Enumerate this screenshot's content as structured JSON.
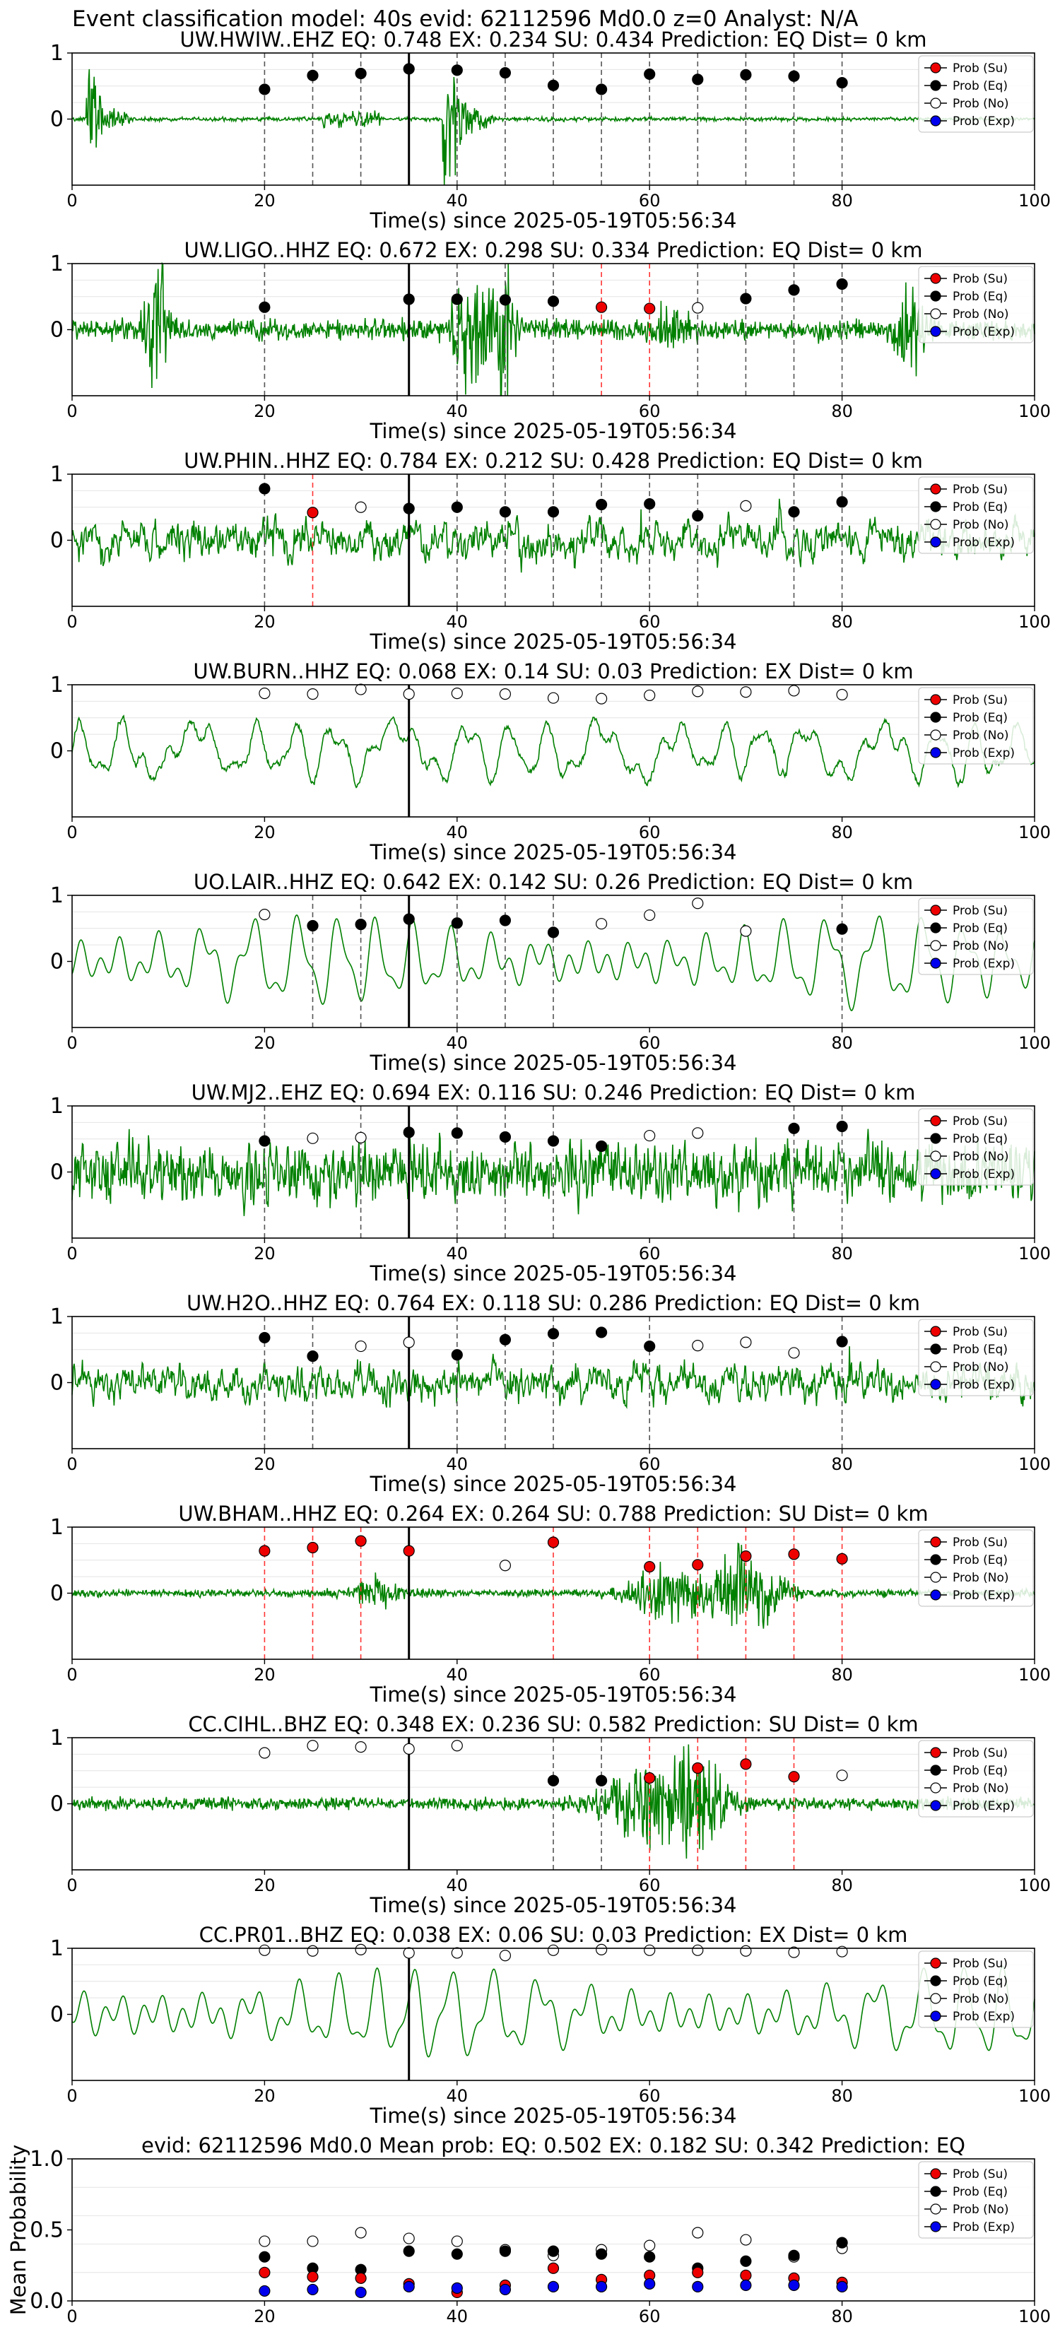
{
  "figure": {
    "suptitle": "Event classification model: 40s evid: 62112596 Md0.0 z=0 Analyst: N/A"
  },
  "legend_labels": [
    "Prob (Su)",
    "Prob (Eq)",
    "Prob (No)",
    "Prob (Exp)"
  ],
  "colors": {
    "su": "#ee0000",
    "eq": "#000000",
    "no": "#ffffff",
    "exp": "#0000ee",
    "waveform": "#008000",
    "pick_line": "#000000",
    "red_line": "#ff3333",
    "dash_line": "#555555"
  },
  "chart_data": [
    {
      "type": "line",
      "title": "UW.HWIW..EHZ   EQ: 0.748   EX: 0.234   SU: 0.434   Prediction: EQ    Dist= 0 km",
      "xlabel": "Time(s) since 2025-05-19T05:56:34",
      "xlim": [
        0,
        100
      ],
      "ylim": [
        -1,
        1
      ],
      "xticks": [
        "0",
        "20",
        "40",
        "60",
        "80",
        "100"
      ],
      "yticks": [
        "0",
        "1"
      ],
      "pick_time": 35,
      "waveform_style": "event",
      "windows": [
        20,
        25,
        30,
        35,
        40,
        45,
        50,
        55,
        60,
        65,
        70,
        75,
        80
      ],
      "points": [
        {
          "x": 20,
          "y": 0.45,
          "cls": "eq"
        },
        {
          "x": 25,
          "y": 0.66,
          "cls": "eq"
        },
        {
          "x": 30,
          "y": 0.69,
          "cls": "eq"
        },
        {
          "x": 35,
          "y": 0.76,
          "cls": "eq"
        },
        {
          "x": 40,
          "y": 0.74,
          "cls": "eq"
        },
        {
          "x": 45,
          "y": 0.7,
          "cls": "eq"
        },
        {
          "x": 50,
          "y": 0.51,
          "cls": "eq"
        },
        {
          "x": 55,
          "y": 0.45,
          "cls": "eq"
        },
        {
          "x": 60,
          "y": 0.68,
          "cls": "eq"
        },
        {
          "x": 65,
          "y": 0.6,
          "cls": "eq"
        },
        {
          "x": 70,
          "y": 0.67,
          "cls": "eq"
        },
        {
          "x": 75,
          "y": 0.65,
          "cls": "eq"
        },
        {
          "x": 80,
          "y": 0.55,
          "cls": "eq"
        }
      ]
    },
    {
      "type": "line",
      "title": "UW.LIGO..HHZ   EQ: 0.672  EX: 0.298   SU: 0.334   Prediction: EQ    Dist= 0 km",
      "xlabel": "Time(s) since 2025-05-19T05:56:34",
      "xlim": [
        0,
        100
      ],
      "ylim": [
        -1,
        1
      ],
      "xticks": [
        "0",
        "20",
        "40",
        "60",
        "80",
        "100"
      ],
      "yticks": [
        "0",
        "1"
      ],
      "pick_time": 35,
      "waveform_style": "bursty",
      "windows": [
        20,
        35,
        40,
        45,
        50,
        55,
        60,
        65,
        70,
        75,
        80
      ],
      "points": [
        {
          "x": 20,
          "y": 0.34,
          "cls": "eq"
        },
        {
          "x": 35,
          "y": 0.46,
          "cls": "eq"
        },
        {
          "x": 40,
          "y": 0.46,
          "cls": "eq"
        },
        {
          "x": 45,
          "y": 0.45,
          "cls": "eq"
        },
        {
          "x": 50,
          "y": 0.43,
          "cls": "eq"
        },
        {
          "x": 55,
          "y": 0.34,
          "cls": "su"
        },
        {
          "x": 60,
          "y": 0.32,
          "cls": "su"
        },
        {
          "x": 65,
          "y": 0.33,
          "cls": "no"
        },
        {
          "x": 70,
          "y": 0.47,
          "cls": "eq"
        },
        {
          "x": 75,
          "y": 0.6,
          "cls": "eq"
        },
        {
          "x": 80,
          "y": 0.69,
          "cls": "eq"
        }
      ]
    },
    {
      "type": "line",
      "title": "UW.PHIN..HHZ   EQ: 0.784  EX: 0.212   SU: 0.428   Prediction: EQ    Dist= 0 km",
      "xlabel": "Time(s) since 2025-05-19T05:56:34",
      "xlim": [
        0,
        100
      ],
      "ylim": [
        -1,
        1
      ],
      "xticks": [
        "0",
        "20",
        "40",
        "60",
        "80",
        "100"
      ],
      "yticks": [
        "0",
        "1"
      ],
      "pick_time": 35,
      "waveform_style": "noise",
      "windows": [
        20,
        25,
        35,
        40,
        45,
        50,
        55,
        60,
        65,
        75,
        80
      ],
      "points": [
        {
          "x": 20,
          "y": 0.78,
          "cls": "eq"
        },
        {
          "x": 25,
          "y": 0.42,
          "cls": "su"
        },
        {
          "x": 30,
          "y": 0.5,
          "cls": "no"
        },
        {
          "x": 35,
          "y": 0.48,
          "cls": "eq"
        },
        {
          "x": 40,
          "y": 0.5,
          "cls": "eq"
        },
        {
          "x": 45,
          "y": 0.43,
          "cls": "eq"
        },
        {
          "x": 50,
          "y": 0.43,
          "cls": "eq"
        },
        {
          "x": 55,
          "y": 0.54,
          "cls": "eq"
        },
        {
          "x": 60,
          "y": 0.55,
          "cls": "eq"
        },
        {
          "x": 65,
          "y": 0.37,
          "cls": "eq"
        },
        {
          "x": 70,
          "y": 0.52,
          "cls": "no"
        },
        {
          "x": 75,
          "y": 0.43,
          "cls": "eq"
        },
        {
          "x": 80,
          "y": 0.58,
          "cls": "eq"
        }
      ]
    },
    {
      "type": "line",
      "title": "UW.BURN..HHZ   EQ: 0.068   EX: 0.14   SU: 0.03   Prediction: EX    Dist= 0 km",
      "xlabel": "Time(s) since 2025-05-19T05:56:34",
      "xlim": [
        0,
        100
      ],
      "ylim": [
        -1,
        1
      ],
      "xticks": [
        "0",
        "20",
        "40",
        "60",
        "80",
        "100"
      ],
      "yticks": [
        "0",
        "1"
      ],
      "pick_time": 35,
      "waveform_style": "wavy",
      "windows": [],
      "points": [
        {
          "x": 20,
          "y": 0.87,
          "cls": "no"
        },
        {
          "x": 25,
          "y": 0.86,
          "cls": "no"
        },
        {
          "x": 30,
          "y": 0.93,
          "cls": "no"
        },
        {
          "x": 35,
          "y": 0.86,
          "cls": "no"
        },
        {
          "x": 40,
          "y": 0.87,
          "cls": "no"
        },
        {
          "x": 45,
          "y": 0.86,
          "cls": "no"
        },
        {
          "x": 50,
          "y": 0.8,
          "cls": "no"
        },
        {
          "x": 55,
          "y": 0.79,
          "cls": "no"
        },
        {
          "x": 60,
          "y": 0.84,
          "cls": "no"
        },
        {
          "x": 65,
          "y": 0.9,
          "cls": "no"
        },
        {
          "x": 70,
          "y": 0.89,
          "cls": "no"
        },
        {
          "x": 75,
          "y": 0.91,
          "cls": "no"
        },
        {
          "x": 80,
          "y": 0.85,
          "cls": "no"
        }
      ]
    },
    {
      "type": "line",
      "title": "UO.LAIR..HHZ   EQ: 0.642  EX: 0.142   SU: 0.26   Prediction: EQ    Dist= 0 km",
      "xlabel": "Time(s) since 2025-05-19T05:56:34",
      "xlim": [
        0,
        100
      ],
      "ylim": [
        -1,
        1
      ],
      "xticks": [
        "0",
        "20",
        "40",
        "60",
        "80",
        "100"
      ],
      "yticks": [
        "0",
        "1"
      ],
      "pick_time": 35,
      "waveform_style": "smooth",
      "windows": [
        25,
        30,
        35,
        40,
        45,
        50,
        80
      ],
      "points": [
        {
          "x": 20,
          "y": 0.71,
          "cls": "no"
        },
        {
          "x": 25,
          "y": 0.54,
          "cls": "eq"
        },
        {
          "x": 30,
          "y": 0.56,
          "cls": "eq"
        },
        {
          "x": 35,
          "y": 0.64,
          "cls": "eq"
        },
        {
          "x": 40,
          "y": 0.58,
          "cls": "eq"
        },
        {
          "x": 45,
          "y": 0.62,
          "cls": "eq"
        },
        {
          "x": 50,
          "y": 0.44,
          "cls": "eq"
        },
        {
          "x": 55,
          "y": 0.57,
          "cls": "no"
        },
        {
          "x": 60,
          "y": 0.7,
          "cls": "no"
        },
        {
          "x": 65,
          "y": 0.88,
          "cls": "no"
        },
        {
          "x": 70,
          "y": 0.46,
          "cls": "no"
        },
        {
          "x": 80,
          "y": 0.49,
          "cls": "eq"
        }
      ]
    },
    {
      "type": "line",
      "title": "UW.MJ2..EHZ   EQ: 0.694  EX: 0.116  SU: 0.246   Prediction: EQ    Dist= 0 km",
      "xlabel": "Time(s) since 2025-05-19T05:56:34",
      "xlim": [
        0,
        100
      ],
      "ylim": [
        -1,
        1
      ],
      "xticks": [
        "0",
        "20",
        "40",
        "60",
        "80",
        "100"
      ],
      "yticks": [
        "0",
        "1"
      ],
      "pick_time": 35,
      "waveform_style": "dense",
      "windows": [
        20,
        30,
        35,
        40,
        45,
        50,
        75,
        80
      ],
      "points": [
        {
          "x": 20,
          "y": 0.47,
          "cls": "eq"
        },
        {
          "x": 25,
          "y": 0.51,
          "cls": "no"
        },
        {
          "x": 30,
          "y": 0.52,
          "cls": "no"
        },
        {
          "x": 35,
          "y": 0.6,
          "cls": "eq"
        },
        {
          "x": 40,
          "y": 0.59,
          "cls": "eq"
        },
        {
          "x": 45,
          "y": 0.53,
          "cls": "eq"
        },
        {
          "x": 50,
          "y": 0.47,
          "cls": "eq"
        },
        {
          "x": 55,
          "y": 0.39,
          "cls": "eq"
        },
        {
          "x": 60,
          "y": 0.55,
          "cls": "no"
        },
        {
          "x": 65,
          "y": 0.59,
          "cls": "no"
        },
        {
          "x": 75,
          "y": 0.66,
          "cls": "eq"
        },
        {
          "x": 80,
          "y": 0.69,
          "cls": "eq"
        }
      ]
    },
    {
      "type": "line",
      "title": "UW.H2O..HHZ   EQ: 0.764  EX: 0.118  SU: 0.286   Prediction: EQ    Dist= 0 km",
      "xlabel": "Time(s) since 2025-05-19T05:56:34",
      "xlim": [
        0,
        100
      ],
      "ylim": [
        -1,
        1
      ],
      "xticks": [
        "0",
        "20",
        "40",
        "60",
        "80",
        "100"
      ],
      "yticks": [
        "0",
        "1"
      ],
      "pick_time": 35,
      "waveform_style": "noise",
      "windows": [
        20,
        25,
        35,
        40,
        45,
        50,
        60,
        80
      ],
      "points": [
        {
          "x": 20,
          "y": 0.68,
          "cls": "eq"
        },
        {
          "x": 25,
          "y": 0.4,
          "cls": "eq"
        },
        {
          "x": 30,
          "y": 0.55,
          "cls": "no"
        },
        {
          "x": 35,
          "y": 0.61,
          "cls": "no"
        },
        {
          "x": 40,
          "y": 0.42,
          "cls": "eq"
        },
        {
          "x": 45,
          "y": 0.65,
          "cls": "eq"
        },
        {
          "x": 50,
          "y": 0.74,
          "cls": "eq"
        },
        {
          "x": 55,
          "y": 0.76,
          "cls": "eq"
        },
        {
          "x": 60,
          "y": 0.55,
          "cls": "eq"
        },
        {
          "x": 65,
          "y": 0.56,
          "cls": "no"
        },
        {
          "x": 70,
          "y": 0.61,
          "cls": "no"
        },
        {
          "x": 75,
          "y": 0.45,
          "cls": "no"
        },
        {
          "x": 80,
          "y": 0.62,
          "cls": "eq"
        }
      ]
    },
    {
      "type": "line",
      "title": "UW.BHAM..HHZ   EQ: 0.264   EX: 0.264   SU: 0.788   Prediction: SU    Dist= 0 km",
      "xlabel": "Time(s) since 2025-05-19T05:56:34",
      "xlim": [
        0,
        100
      ],
      "ylim": [
        -1,
        1
      ],
      "xticks": [
        "0",
        "20",
        "40",
        "60",
        "80",
        "100"
      ],
      "yticks": [
        "0",
        "1"
      ],
      "pick_time": 35,
      "waveform_style": "quiet_burst",
      "windows": [
        20,
        25,
        30,
        50,
        60,
        65,
        70,
        75,
        80
      ],
      "points": [
        {
          "x": 20,
          "y": 0.64,
          "cls": "su"
        },
        {
          "x": 25,
          "y": 0.69,
          "cls": "su"
        },
        {
          "x": 30,
          "y": 0.79,
          "cls": "su"
        },
        {
          "x": 35,
          "y": 0.64,
          "cls": "su"
        },
        {
          "x": 45,
          "y": 0.42,
          "cls": "no"
        },
        {
          "x": 50,
          "y": 0.77,
          "cls": "su"
        },
        {
          "x": 60,
          "y": 0.4,
          "cls": "su"
        },
        {
          "x": 65,
          "y": 0.43,
          "cls": "su"
        },
        {
          "x": 70,
          "y": 0.56,
          "cls": "su"
        },
        {
          "x": 75,
          "y": 0.59,
          "cls": "su"
        },
        {
          "x": 80,
          "y": 0.52,
          "cls": "su"
        }
      ]
    },
    {
      "type": "line",
      "title": "CC.CIHL..BHZ   EQ: 0.348   EX: 0.236   SU: 0.582   Prediction: SU    Dist= 0 km",
      "xlabel": "Time(s) since 2025-05-19T05:56:34",
      "xlim": [
        0,
        100
      ],
      "ylim": [
        -1,
        1
      ],
      "xticks": [
        "0",
        "20",
        "40",
        "60",
        "80",
        "100"
      ],
      "yticks": [
        "0",
        "1"
      ],
      "pick_time": 35,
      "waveform_style": "quiet_burst2",
      "windows": [
        50,
        55,
        60,
        65,
        70,
        75
      ],
      "points": [
        {
          "x": 20,
          "y": 0.77,
          "cls": "no"
        },
        {
          "x": 25,
          "y": 0.88,
          "cls": "no"
        },
        {
          "x": 30,
          "y": 0.86,
          "cls": "no"
        },
        {
          "x": 35,
          "y": 0.83,
          "cls": "no"
        },
        {
          "x": 40,
          "y": 0.88,
          "cls": "no"
        },
        {
          "x": 50,
          "y": 0.35,
          "cls": "eq"
        },
        {
          "x": 55,
          "y": 0.35,
          "cls": "eq"
        },
        {
          "x": 60,
          "y": 0.39,
          "cls": "su"
        },
        {
          "x": 65,
          "y": 0.54,
          "cls": "su"
        },
        {
          "x": 70,
          "y": 0.6,
          "cls": "su"
        },
        {
          "x": 75,
          "y": 0.41,
          "cls": "su"
        },
        {
          "x": 80,
          "y": 0.43,
          "cls": "no"
        }
      ]
    },
    {
      "type": "line",
      "title": "CC.PR01..BHZ   EQ: 0.038   EX: 0.06   SU: 0.03   Prediction: EX    Dist= 0 km",
      "xlabel": "Time(s) since 2025-05-19T05:56:34",
      "xlim": [
        0,
        100
      ],
      "ylim": [
        -1,
        1
      ],
      "xticks": [
        "0",
        "20",
        "40",
        "60",
        "80",
        "100"
      ],
      "yticks": [
        "0",
        "1"
      ],
      "pick_time": 35,
      "waveform_style": "smooth",
      "windows": [],
      "points": [
        {
          "x": 20,
          "y": 0.97,
          "cls": "no"
        },
        {
          "x": 25,
          "y": 0.96,
          "cls": "no"
        },
        {
          "x": 30,
          "y": 0.98,
          "cls": "no"
        },
        {
          "x": 35,
          "y": 0.93,
          "cls": "no"
        },
        {
          "x": 40,
          "y": 0.93,
          "cls": "no"
        },
        {
          "x": 45,
          "y": 0.89,
          "cls": "no"
        },
        {
          "x": 50,
          "y": 0.97,
          "cls": "no"
        },
        {
          "x": 55,
          "y": 0.98,
          "cls": "no"
        },
        {
          "x": 60,
          "y": 0.97,
          "cls": "no"
        },
        {
          "x": 65,
          "y": 0.97,
          "cls": "no"
        },
        {
          "x": 70,
          "y": 0.96,
          "cls": "no"
        },
        {
          "x": 75,
          "y": 0.94,
          "cls": "no"
        },
        {
          "x": 80,
          "y": 0.95,
          "cls": "no"
        }
      ]
    },
    {
      "type": "scatter",
      "title": "evid: 62112596  Md0.0   Mean prob:   EQ: 0.502  EX: 0.182  SU: 0.342   Prediction: EQ",
      "ylabel": "Mean Probability",
      "xlim": [
        0,
        100
      ],
      "ylim": [
        0,
        1
      ],
      "xticks": [
        "0",
        "20",
        "40",
        "60",
        "80",
        "100"
      ],
      "yticks": [
        "0.0",
        "0.5",
        "1.0"
      ],
      "x": [
        20,
        25,
        30,
        35,
        40,
        45,
        50,
        55,
        60,
        65,
        70,
        75,
        80
      ],
      "series": [
        {
          "name": "Prob (No)",
          "cls": "no",
          "values": [
            0.42,
            0.42,
            0.48,
            0.44,
            0.42,
            0.36,
            0.32,
            0.36,
            0.39,
            0.48,
            0.43,
            0.31,
            0.37
          ]
        },
        {
          "name": "Prob (Eq)",
          "cls": "eq",
          "values": [
            0.31,
            0.23,
            0.22,
            0.35,
            0.33,
            0.35,
            0.35,
            0.33,
            0.31,
            0.23,
            0.28,
            0.32,
            0.41
          ]
        },
        {
          "name": "Prob (Su)",
          "cls": "su",
          "values": [
            0.2,
            0.17,
            0.16,
            0.12,
            0.06,
            0.11,
            0.23,
            0.15,
            0.18,
            0.2,
            0.18,
            0.16,
            0.13
          ]
        },
        {
          "name": "Prob (Exp)",
          "cls": "exp",
          "values": [
            0.07,
            0.08,
            0.06,
            0.1,
            0.09,
            0.08,
            0.1,
            0.1,
            0.12,
            0.1,
            0.11,
            0.11,
            0.1
          ]
        }
      ]
    }
  ]
}
